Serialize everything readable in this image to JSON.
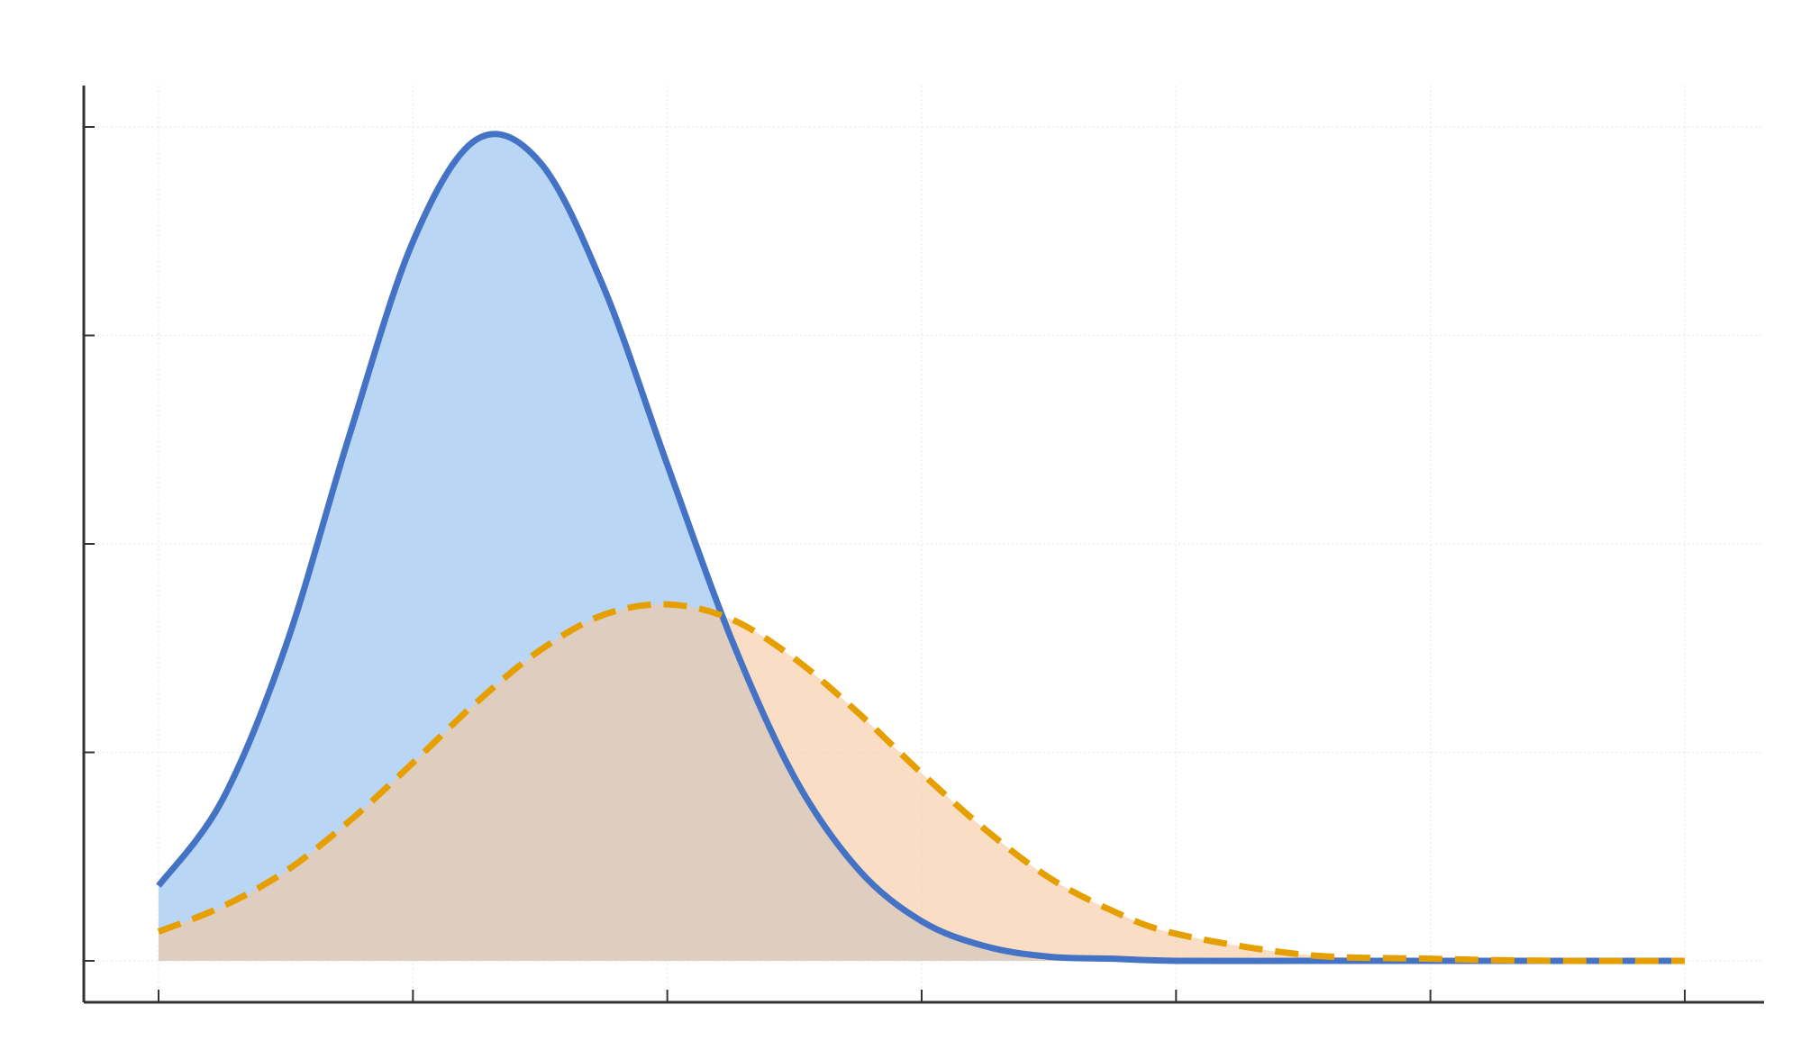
{
  "chart_data": {
    "type": "area",
    "title": "",
    "xlabel": "",
    "ylabel": "",
    "xlim": [
      0,
      6
    ],
    "ylim": [
      0,
      4
    ],
    "xticks": [
      0,
      1,
      2,
      3,
      4,
      5,
      6
    ],
    "yticks": [
      0,
      1,
      2,
      3,
      4
    ],
    "grid": true,
    "legend": "none",
    "series": [
      {
        "style": "solid",
        "color": "#4472c4",
        "fill": "#a9ccf2",
        "x": [
          0,
          0.25,
          0.5,
          0.75,
          1.0,
          1.25,
          1.5,
          1.75,
          2.0,
          2.25,
          2.5,
          2.75,
          3.0,
          3.25,
          3.5,
          3.75,
          4.0,
          4.5,
          5.0,
          5.5,
          6.0
        ],
        "values": [
          0.36,
          0.77,
          1.51,
          2.52,
          3.45,
          3.94,
          3.83,
          3.23,
          2.38,
          1.55,
          0.88,
          0.44,
          0.19,
          0.07,
          0.02,
          0.01,
          0.0,
          0.0,
          0.0,
          0.0,
          0.0
        ]
      },
      {
        "style": "dashed",
        "color": "#e69f00",
        "fill": "#f5c8a0",
        "x": [
          0,
          0.25,
          0.5,
          0.75,
          1.0,
          1.25,
          1.5,
          1.75,
          2.0,
          2.25,
          2.5,
          2.75,
          3.0,
          3.25,
          3.5,
          3.75,
          4.0,
          4.5,
          5.0,
          5.5,
          6.0
        ],
        "values": [
          0.14,
          0.26,
          0.43,
          0.67,
          0.95,
          1.24,
          1.49,
          1.66,
          1.71,
          1.64,
          1.45,
          1.19,
          0.9,
          0.63,
          0.4,
          0.24,
          0.13,
          0.03,
          0.01,
          0.0,
          0.0
        ]
      }
    ]
  }
}
